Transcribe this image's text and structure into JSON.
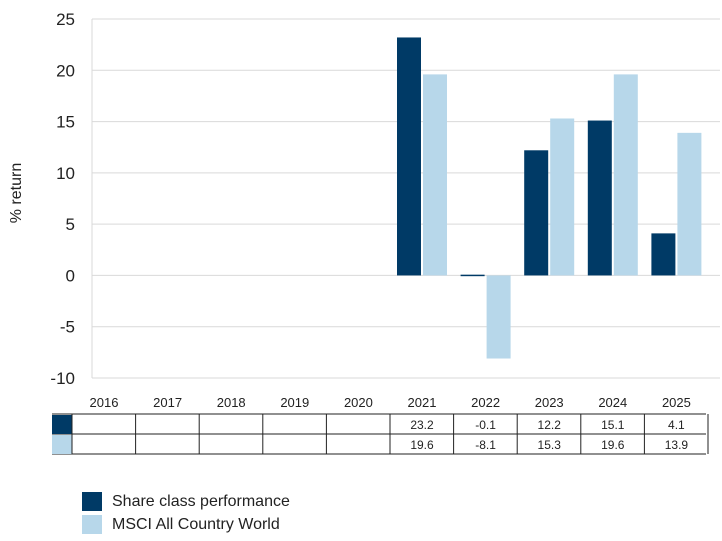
{
  "chart_data": {
    "type": "bar",
    "ylabel": "% return",
    "ylim": [
      -10,
      25
    ],
    "yticks": [
      25,
      20,
      15,
      10,
      5,
      0,
      -5,
      -10
    ],
    "categories": [
      "2016",
      "2017",
      "2018",
      "2019",
      "2020",
      "2021",
      "2022",
      "2023",
      "2024",
      "2025"
    ],
    "series": [
      {
        "name": "Share class performance",
        "color": "#003a66",
        "values": [
          null,
          null,
          null,
          null,
          null,
          23.2,
          -0.1,
          12.2,
          15.1,
          4.1
        ],
        "labels": [
          "",
          "",
          "",
          "",
          "",
          "23.2",
          "-0.1",
          "12.2",
          "15.1",
          "4.1"
        ]
      },
      {
        "name": "MSCI All Country World",
        "color": "#b7d7ea",
        "values": [
          null,
          null,
          null,
          null,
          null,
          19.6,
          -8.1,
          15.3,
          19.6,
          13.9
        ],
        "labels": [
          "",
          "",
          "",
          "",
          "",
          "19.6",
          "-8.1",
          "15.3",
          "19.6",
          "13.9"
        ]
      }
    ],
    "grid": true,
    "legend_position": "bottom-left"
  }
}
